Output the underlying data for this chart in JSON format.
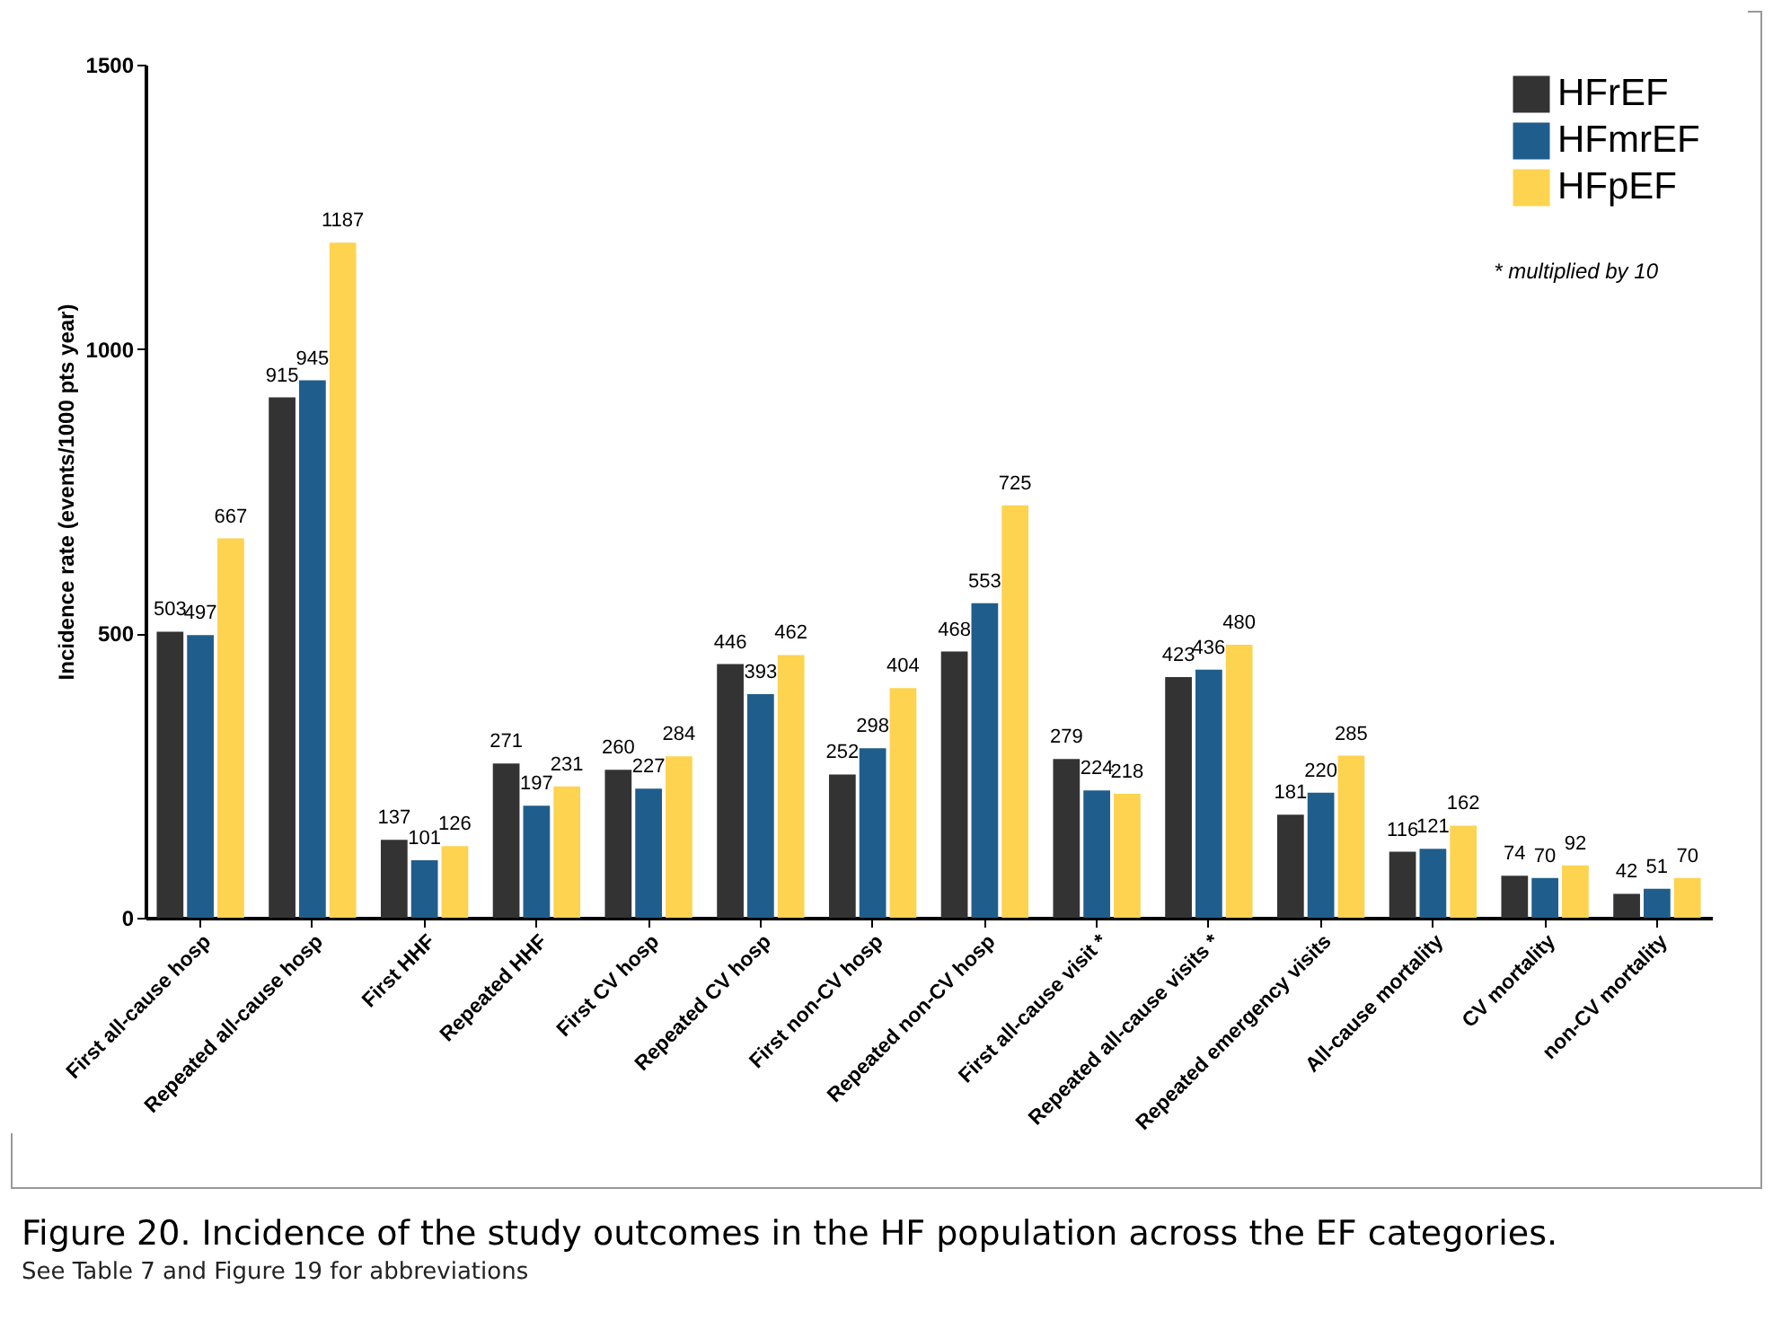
{
  "chart_data": {
    "type": "bar",
    "ylabel": "Incidence rate (events/1000 pts year)",
    "categories": [
      "First all-cause hosp",
      "Repeated all-cause hosp",
      "First HHF",
      "Repeated HHF",
      "First CV hosp",
      "Repeated CV hosp",
      "First non-CV hosp",
      "Repeated non-CV hosp",
      "First all-cause visit *",
      "Repeated all-cause visits *",
      "Repeated emergency visits",
      "All-cause mortality",
      "CV mortality",
      "non-CV mortality"
    ],
    "series": [
      {
        "name": "HFrEF",
        "color": "#333333",
        "values": [
          503,
          915,
          137,
          271,
          260,
          446,
          252,
          468,
          279,
          423,
          181,
          116,
          74,
          42
        ]
      },
      {
        "name": "HFmrEF",
        "color": "#1f5e8c",
        "values": [
          497,
          945,
          101,
          197,
          227,
          393,
          298,
          553,
          224,
          436,
          220,
          121,
          70,
          51
        ]
      },
      {
        "name": "HFpEF",
        "color": "#fdd34f",
        "values": [
          667,
          1187,
          126,
          231,
          284,
          462,
          404,
          725,
          218,
          480,
          285,
          162,
          92,
          70
        ]
      }
    ],
    "ylim": [
      0,
      1500
    ],
    "yticks": [
      0,
      500,
      1000,
      1500
    ],
    "data_labels": true,
    "grid": false,
    "legend": "top right",
    "annotations": [
      "* multiplied by 10",
      "Figure 20. Incidence of the study outcomes in the HF population across the EF categories.",
      "See Table 7 and Figure 19 for abbreviations"
    ]
  }
}
